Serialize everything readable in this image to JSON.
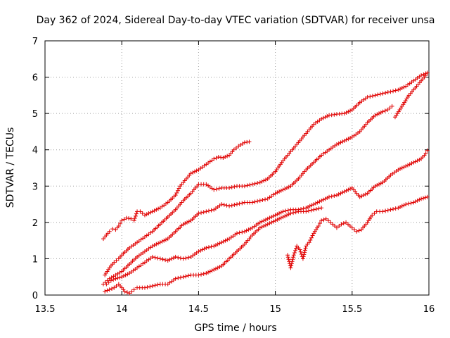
{
  "chart_data": {
    "type": "scatter",
    "title": "Day 362 of 2024, Sidereal Day-to-day VTEC variation (SDTVAR) for receiver unsa",
    "xlabel": "GPS time / hours",
    "ylabel": "SDTVAR / TECUs",
    "xlim": [
      13.5,
      16
    ],
    "ylim": [
      0,
      7
    ],
    "x_ticks": [
      "13.5",
      "14",
      "14.5",
      "15",
      "15.5",
      "16"
    ],
    "y_ticks": [
      "0",
      "1",
      "2",
      "3",
      "4",
      "5",
      "6",
      "7"
    ],
    "grid": true,
    "legend": "none",
    "marker": "plus",
    "color": "#e00000",
    "series": [
      {
        "points": [
          [
            13.88,
            1.55
          ],
          [
            13.9,
            1.65
          ],
          [
            13.92,
            1.75
          ],
          [
            13.94,
            1.82
          ],
          [
            13.96,
            1.8
          ],
          [
            13.98,
            1.9
          ],
          [
            14.0,
            2.05
          ],
          [
            14.03,
            2.12
          ],
          [
            14.06,
            2.1
          ],
          [
            14.08,
            2.05
          ],
          [
            14.1,
            2.3
          ],
          [
            14.12,
            2.3
          ],
          [
            14.15,
            2.2
          ],
          [
            14.2,
            2.3
          ],
          [
            14.25,
            2.4
          ],
          [
            14.3,
            2.55
          ],
          [
            14.35,
            2.75
          ],
          [
            14.38,
            3.0
          ],
          [
            14.4,
            3.1
          ],
          [
            14.45,
            3.35
          ],
          [
            14.5,
            3.45
          ],
          [
            14.55,
            3.6
          ],
          [
            14.6,
            3.75
          ],
          [
            14.63,
            3.8
          ],
          [
            14.66,
            3.78
          ],
          [
            14.7,
            3.85
          ],
          [
            14.73,
            4.0
          ],
          [
            14.76,
            4.1
          ],
          [
            14.8,
            4.2
          ],
          [
            14.83,
            4.22
          ]
        ]
      },
      {
        "points": [
          [
            13.89,
            0.55
          ],
          [
            13.92,
            0.75
          ],
          [
            13.95,
            0.9
          ],
          [
            13.98,
            1.0
          ],
          [
            14.0,
            1.1
          ],
          [
            14.05,
            1.3
          ],
          [
            14.1,
            1.45
          ],
          [
            14.15,
            1.6
          ],
          [
            14.2,
            1.75
          ],
          [
            14.25,
            1.95
          ],
          [
            14.3,
            2.15
          ],
          [
            14.35,
            2.35
          ],
          [
            14.4,
            2.6
          ],
          [
            14.45,
            2.8
          ],
          [
            14.5,
            3.05
          ],
          [
            14.55,
            3.05
          ],
          [
            14.6,
            2.9
          ],
          [
            14.65,
            2.95
          ],
          [
            14.7,
            2.95
          ],
          [
            14.75,
            3.0
          ],
          [
            14.8,
            3.0
          ],
          [
            14.85,
            3.05
          ],
          [
            14.9,
            3.1
          ],
          [
            14.95,
            3.2
          ],
          [
            15.0,
            3.4
          ],
          [
            15.05,
            3.7
          ],
          [
            15.1,
            3.95
          ],
          [
            15.15,
            4.2
          ],
          [
            15.2,
            4.45
          ],
          [
            15.25,
            4.7
          ],
          [
            15.3,
            4.85
          ],
          [
            15.35,
            4.95
          ],
          [
            15.4,
            4.98
          ],
          [
            15.45,
            5.0
          ],
          [
            15.5,
            5.1
          ],
          [
            15.55,
            5.3
          ],
          [
            15.6,
            5.45
          ],
          [
            15.65,
            5.5
          ],
          [
            15.7,
            5.55
          ],
          [
            15.75,
            5.6
          ],
          [
            15.8,
            5.65
          ],
          [
            15.85,
            5.75
          ],
          [
            15.9,
            5.9
          ],
          [
            15.95,
            6.05
          ],
          [
            15.98,
            6.1
          ]
        ]
      },
      {
        "points": [
          [
            13.88,
            0.3
          ],
          [
            13.92,
            0.45
          ],
          [
            13.96,
            0.55
          ],
          [
            14.0,
            0.65
          ],
          [
            14.05,
            0.85
          ],
          [
            14.1,
            1.05
          ],
          [
            14.15,
            1.2
          ],
          [
            14.2,
            1.35
          ],
          [
            14.25,
            1.45
          ],
          [
            14.3,
            1.55
          ],
          [
            14.35,
            1.75
          ],
          [
            14.4,
            1.95
          ],
          [
            14.45,
            2.05
          ],
          [
            14.5,
            2.25
          ],
          [
            14.55,
            2.3
          ],
          [
            14.6,
            2.35
          ],
          [
            14.65,
            2.5
          ],
          [
            14.7,
            2.45
          ],
          [
            14.75,
            2.5
          ],
          [
            14.8,
            2.55
          ],
          [
            14.85,
            2.55
          ],
          [
            14.9,
            2.6
          ],
          [
            14.95,
            2.65
          ],
          [
            15.0,
            2.8
          ],
          [
            15.05,
            2.9
          ],
          [
            15.1,
            3.0
          ],
          [
            15.15,
            3.2
          ],
          [
            15.2,
            3.45
          ],
          [
            15.25,
            3.65
          ],
          [
            15.3,
            3.85
          ],
          [
            15.35,
            4.0
          ],
          [
            15.4,
            4.15
          ],
          [
            15.45,
            4.25
          ],
          [
            15.5,
            4.35
          ],
          [
            15.55,
            4.5
          ],
          [
            15.6,
            4.75
          ],
          [
            15.65,
            4.95
          ],
          [
            15.7,
            5.05
          ],
          [
            15.73,
            5.1
          ],
          [
            15.76,
            5.2
          ]
        ]
      },
      {
        "points": [
          [
            13.9,
            0.3
          ],
          [
            13.93,
            0.4
          ],
          [
            13.96,
            0.45
          ],
          [
            14.0,
            0.5
          ],
          [
            14.05,
            0.6
          ],
          [
            14.1,
            0.75
          ],
          [
            14.15,
            0.9
          ],
          [
            14.2,
            1.05
          ],
          [
            14.25,
            1.0
          ],
          [
            14.3,
            0.95
          ],
          [
            14.35,
            1.05
          ],
          [
            14.4,
            1.0
          ],
          [
            14.45,
            1.05
          ],
          [
            14.5,
            1.2
          ],
          [
            14.55,
            1.3
          ],
          [
            14.6,
            1.35
          ],
          [
            14.65,
            1.45
          ],
          [
            14.7,
            1.55
          ],
          [
            14.75,
            1.7
          ],
          [
            14.8,
            1.75
          ],
          [
            14.85,
            1.85
          ],
          [
            14.9,
            2.0
          ],
          [
            14.95,
            2.1
          ],
          [
            15.0,
            2.2
          ],
          [
            15.05,
            2.3
          ],
          [
            15.1,
            2.35
          ],
          [
            15.15,
            2.35
          ],
          [
            15.2,
            2.4
          ],
          [
            15.25,
            2.5
          ],
          [
            15.3,
            2.6
          ],
          [
            15.35,
            2.7
          ],
          [
            15.4,
            2.75
          ],
          [
            15.45,
            2.85
          ],
          [
            15.5,
            2.95
          ],
          [
            15.55,
            2.7
          ],
          [
            15.6,
            2.8
          ],
          [
            15.65,
            3.0
          ],
          [
            15.7,
            3.1
          ],
          [
            15.75,
            3.3
          ],
          [
            15.8,
            3.45
          ],
          [
            15.85,
            3.55
          ],
          [
            15.9,
            3.65
          ],
          [
            15.95,
            3.75
          ],
          [
            15.98,
            3.9
          ],
          [
            15.99,
            3.98
          ]
        ]
      },
      {
        "points": [
          [
            13.89,
            0.1
          ],
          [
            13.92,
            0.15
          ],
          [
            13.95,
            0.2
          ],
          [
            13.98,
            0.3
          ],
          [
            14.02,
            0.1
          ],
          [
            14.05,
            0.05
          ],
          [
            14.08,
            0.15
          ],
          [
            14.1,
            0.2
          ],
          [
            14.15,
            0.2
          ],
          [
            14.2,
            0.25
          ],
          [
            14.25,
            0.3
          ],
          [
            14.3,
            0.3
          ],
          [
            14.35,
            0.45
          ],
          [
            14.4,
            0.5
          ],
          [
            14.45,
            0.55
          ],
          [
            14.5,
            0.55
          ],
          [
            14.55,
            0.6
          ],
          [
            14.6,
            0.7
          ],
          [
            14.65,
            0.8
          ],
          [
            14.7,
            1.0
          ],
          [
            14.75,
            1.2
          ],
          [
            14.8,
            1.4
          ],
          [
            14.85,
            1.65
          ],
          [
            14.9,
            1.85
          ],
          [
            14.95,
            1.95
          ],
          [
            15.0,
            2.05
          ],
          [
            15.05,
            2.15
          ],
          [
            15.1,
            2.25
          ],
          [
            15.15,
            2.3
          ],
          [
            15.2,
            2.3
          ],
          [
            15.25,
            2.35
          ],
          [
            15.3,
            2.4
          ],
          [
            15.08,
            1.1
          ],
          [
            15.1,
            0.75
          ],
          [
            15.12,
            1.1
          ],
          [
            15.14,
            1.35
          ],
          [
            15.16,
            1.25
          ],
          [
            15.18,
            1.0
          ],
          [
            15.2,
            1.35
          ],
          [
            15.22,
            1.45
          ],
          [
            15.25,
            1.7
          ],
          [
            15.28,
            1.9
          ],
          [
            15.3,
            2.05
          ],
          [
            15.33,
            2.1
          ],
          [
            15.36,
            2.0
          ],
          [
            15.4,
            1.85
          ],
          [
            15.43,
            1.95
          ],
          [
            15.46,
            2.0
          ],
          [
            15.5,
            1.85
          ],
          [
            15.53,
            1.75
          ],
          [
            15.56,
            1.8
          ],
          [
            15.6,
            2.0
          ],
          [
            15.63,
            2.2
          ],
          [
            15.66,
            2.3
          ],
          [
            15.7,
            2.3
          ],
          [
            15.75,
            2.35
          ],
          [
            15.8,
            2.4
          ],
          [
            15.85,
            2.5
          ],
          [
            15.9,
            2.55
          ],
          [
            15.95,
            2.65
          ],
          [
            15.99,
            2.7
          ]
        ]
      },
      {
        "points": [
          [
            15.78,
            4.9
          ],
          [
            15.81,
            5.1
          ],
          [
            15.84,
            5.3
          ],
          [
            15.87,
            5.5
          ],
          [
            15.9,
            5.65
          ],
          [
            15.93,
            5.8
          ],
          [
            15.96,
            5.95
          ],
          [
            15.98,
            6.05
          ],
          [
            15.99,
            6.12
          ]
        ]
      }
    ]
  }
}
